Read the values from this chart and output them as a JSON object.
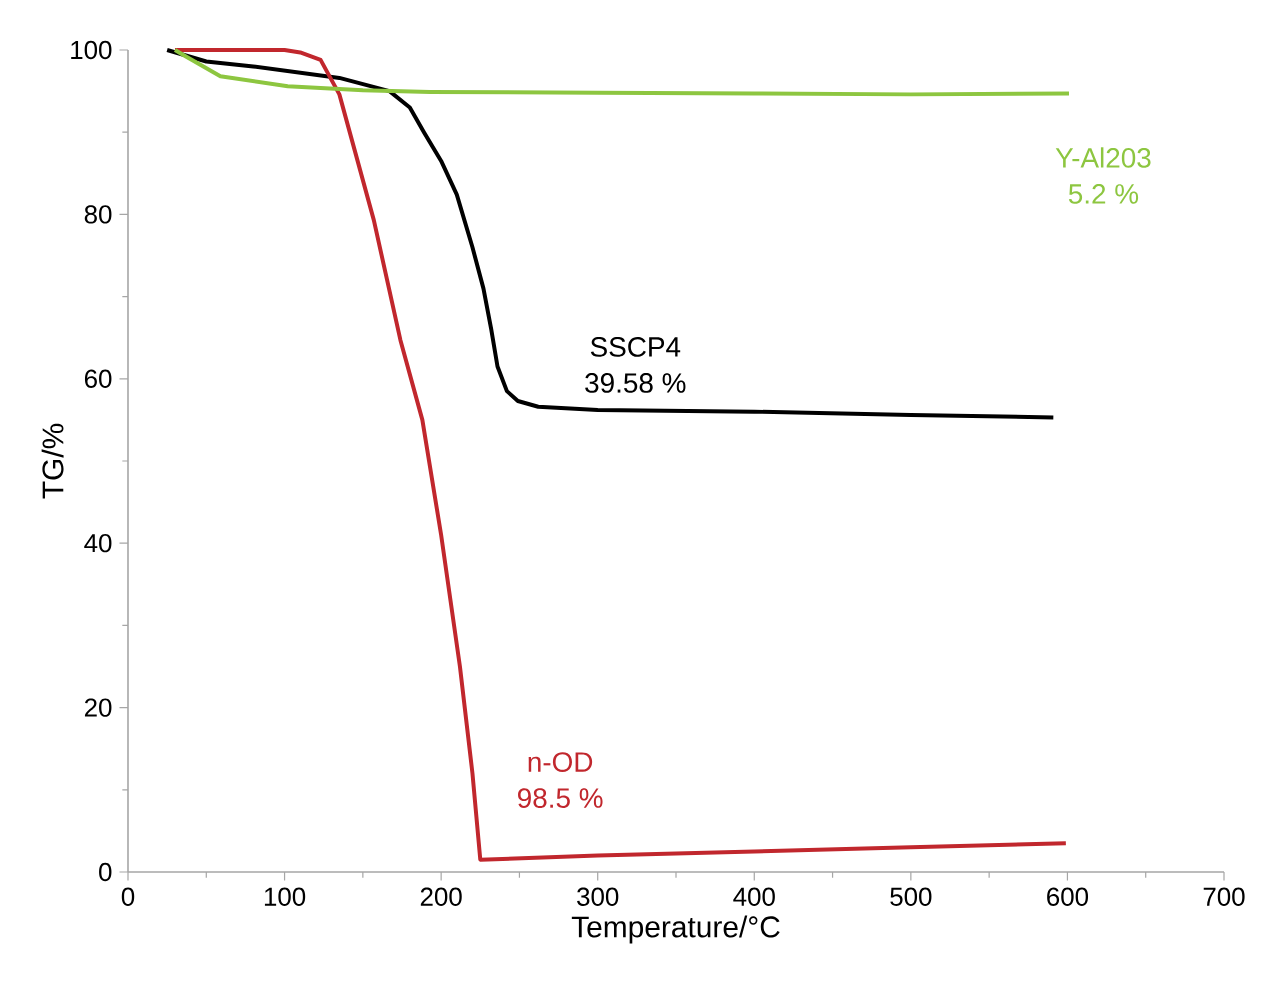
{
  "chart_data": {
    "type": "line",
    "xlabel": "Temperature/°C",
    "ylabel": "TG/%",
    "xlim": [
      0,
      700
    ],
    "ylim": [
      0,
      100
    ],
    "xticks": [
      0,
      100,
      200,
      300,
      400,
      500,
      600,
      700
    ],
    "yticks": [
      0,
      20,
      40,
      60,
      80,
      100
    ],
    "grid": false,
    "legend": false,
    "marker": "none",
    "line_style": "solid",
    "series": [
      {
        "name": "SSCP4",
        "color": "#000000",
        "x": [
          25,
          50,
          80,
          135,
          167,
          180,
          189,
          200,
          210,
          220,
          227,
          232,
          236,
          242,
          249,
          262,
          300,
          400,
          500,
          591
        ],
        "values": [
          100,
          98.6,
          98,
          96.6,
          95,
          93,
          90,
          86.5,
          82.4,
          76,
          71,
          66,
          61.5,
          58.5,
          57.3,
          56.6,
          56.2,
          56,
          55.6,
          55.3
        ]
      },
      {
        "name": "n-OD",
        "color": "#c1272d",
        "x": [
          30,
          100,
          110,
          123,
          135,
          157,
          174,
          188,
          200,
          212,
          220,
          225,
          300,
          400,
          500,
          599
        ],
        "values": [
          100,
          100,
          99.7,
          98.8,
          94.6,
          79.3,
          64.7,
          55,
          41,
          25,
          12,
          1.5,
          2,
          2.5,
          3,
          3.5
        ]
      },
      {
        "name": "Y-Al203",
        "color": "#8dc640",
        "x": [
          30,
          37,
          59,
          102,
          150,
          193,
          300,
          400,
          500,
          601
        ],
        "values": [
          100,
          99.2,
          96.8,
          95.6,
          95.1,
          94.9,
          94.8,
          94.7,
          94.6,
          94.7
        ]
      }
    ],
    "annotations": [
      "39.58 %",
      "98.5 %",
      "5.2 %"
    ]
  }
}
